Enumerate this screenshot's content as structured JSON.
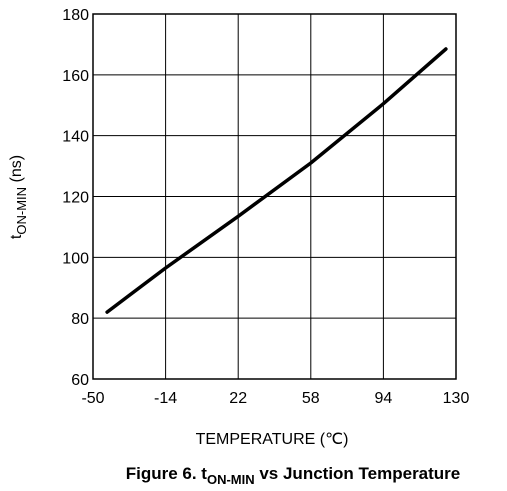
{
  "chart_data": {
    "type": "line",
    "xlabel": "TEMPERATURE (℃)",
    "ylabel_main": "t",
    "ylabel_sub": "ON-MIN",
    "ylabel_rest": " (ns)",
    "xlim": [
      -50,
      130
    ],
    "ylim": [
      60,
      180
    ],
    "x_ticks": [
      -50,
      -14,
      22,
      58,
      94,
      130
    ],
    "x_tick_labels": [
      "-50",
      "-14",
      "22",
      "58",
      "94",
      "130"
    ],
    "y_ticks": [
      60,
      80,
      100,
      120,
      140,
      160,
      180
    ],
    "y_tick_labels": [
      "60",
      "80",
      "100",
      "120",
      "140",
      "160",
      "180"
    ],
    "grid": true,
    "series": [
      {
        "x": [
          -43,
          -14,
          22,
          58,
          94,
          125
        ],
        "y": [
          82,
          96.5,
          113.5,
          131,
          150.5,
          168.5
        ]
      }
    ]
  },
  "caption": {
    "prefix": "Figure 6. t",
    "subscript": "ON-MIN",
    "suffix": " vs Junction Temperature"
  },
  "colors": {
    "line": "#000000",
    "grid": "#000000",
    "background": "#ffffff"
  }
}
